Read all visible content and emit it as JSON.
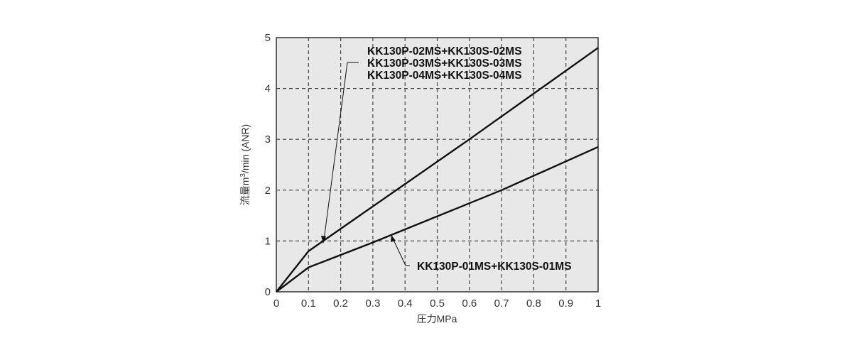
{
  "chart_data": {
    "type": "line",
    "title": "",
    "xlabel": "圧力MPa",
    "ylabel": "流量m³/min (ANR)",
    "xlim": [
      0,
      1
    ],
    "ylim": [
      0,
      5
    ],
    "x_ticks": [
      "0",
      "0.1",
      "0.2",
      "0.3",
      "0.4",
      "0.5",
      "0.6",
      "0.7",
      "0.8",
      "0.9",
      "1"
    ],
    "y_ticks": [
      "0",
      "1",
      "2",
      "3",
      "4",
      "5"
    ],
    "grid": true,
    "legend": "annotations",
    "series": [
      {
        "name": "KK130P-02MS+KK130S-02MS / KK130P-03MS+KK130S-03MS / KK130P-04MS+KK130S-04MS",
        "x": [
          0,
          0.1,
          0.6,
          1.0
        ],
        "values": [
          0,
          0.8,
          3.0,
          4.8
        ]
      },
      {
        "name": "KK130P-01MS+KK130S-01MS",
        "x": [
          0,
          0.1,
          0.3,
          0.7,
          1.0
        ],
        "values": [
          0,
          0.48,
          0.97,
          2.0,
          2.85
        ]
      }
    ],
    "annotations": [
      {
        "lines": [
          "KK130P-02MS+KK130S-02MS",
          "KK130P-03MS+KK130S-03MS",
          "KK130P-04MS+KK130S-04MS"
        ],
        "points_to_series": 0
      },
      {
        "lines": [
          "KK130P-01MS+KK130S-01MS"
        ],
        "points_to_series": 1
      }
    ]
  },
  "labels": {
    "xlabel": "圧力MPa",
    "ylabel_jp": "流量",
    "ylabel_unit": "m",
    "ylabel_sup": "3",
    "ylabel_rest": "/min (ANR)",
    "ann_upper_1": "KK130P-02MS+KK130S-02MS",
    "ann_upper_2": "KK130P-03MS+KK130S-03MS",
    "ann_upper_3": "KK130P-04MS+KK130S-04MS",
    "ann_lower": "KK130P-01MS+KK130S-01MS"
  },
  "colors": {
    "plot_bg": "#e8e8e8",
    "grid": "#444444",
    "line": "#111111"
  }
}
